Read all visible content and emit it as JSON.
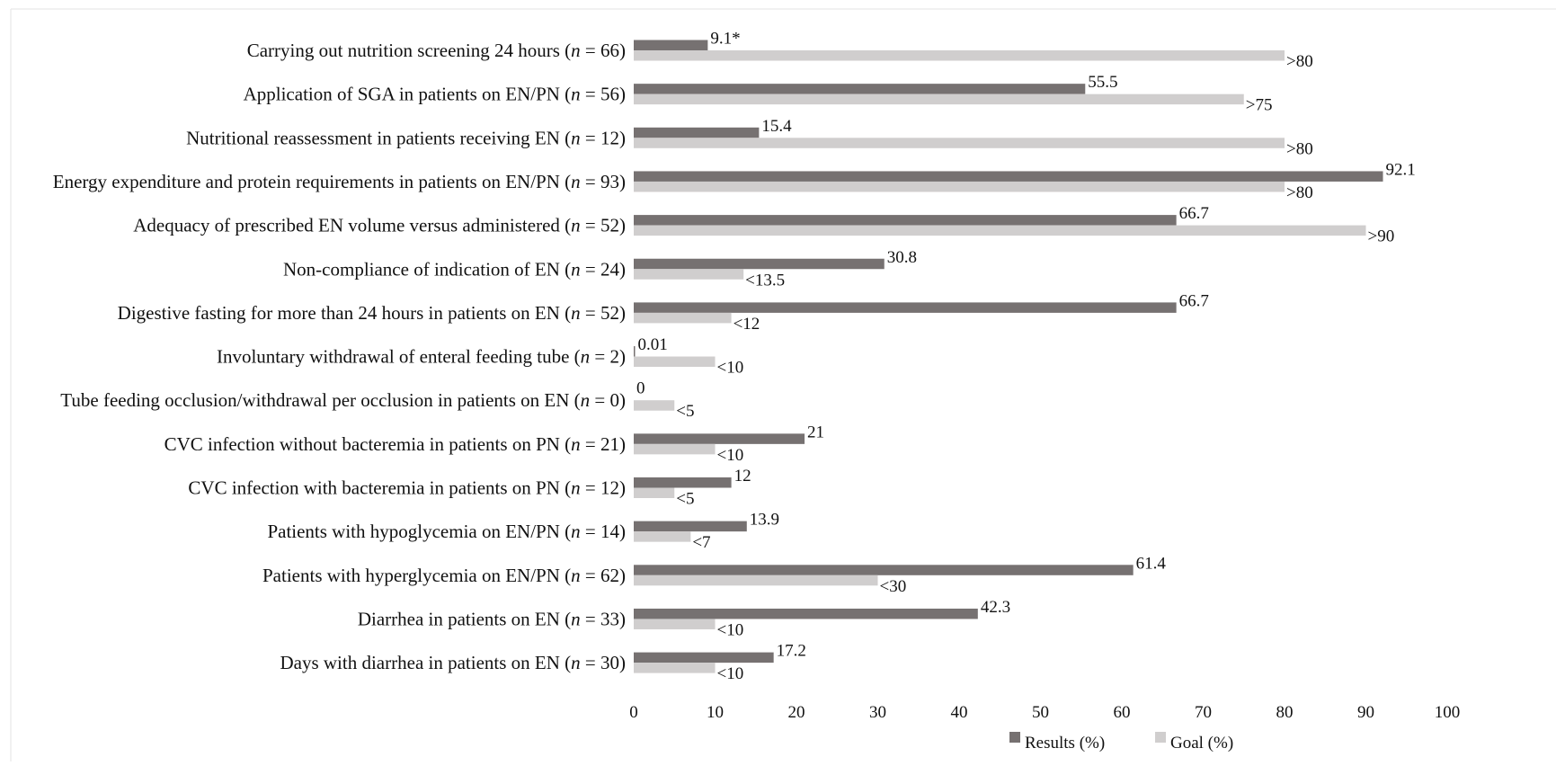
{
  "chart_data": {
    "type": "bar",
    "orientation": "horizontal",
    "categories": [
      "Carrying out nutrition screening 24 hours (n = 66)",
      "Application of SGA in patients on EN/PN (n = 56)",
      "Nutritional reassessment in patients receiving EN (n = 12)",
      "Energy expenditure and protein requirements in patients on EN/PN (n = 93)",
      "Adequacy of prescribed EN volume versus administered (n = 52)",
      "Non-compliance of indication of EN (n = 24)",
      "Digestive fasting for more than 24 hours in patients on EN (n = 52)",
      "Involuntary withdrawal of enteral feeding tube (n = 2)",
      "Tube feeding occlusion/withdrawal per occlusion in patients on EN (n = 0)",
      "CVC infection without bacteremia in patients on PN (n = 21)",
      "CVC infection with bacteremia in patients on PN (n = 12)",
      "Patients with hypoglycemia on EN/PN (n = 14)",
      "Patients with hyperglycemia on EN/PN (n = 62)",
      "Diarrhea in patients on EN (n = 33)",
      "Days with diarrhea in patients on EN (n = 30)"
    ],
    "category_parts": [
      [
        "Carrying out nutrition screening 24 hours (",
        "n",
        " = 66)"
      ],
      [
        "Application of SGA in patients on EN/PN (",
        "n",
        " = 56)"
      ],
      [
        "Nutritional reassessment in patients receiving EN (",
        "n",
        " = 12)"
      ],
      [
        "Energy expenditure and protein requirements in patients on EN/PN (",
        "n",
        " = 93)"
      ],
      [
        "Adequacy of prescribed EN volume versus administered (",
        "n",
        " = 52)"
      ],
      [
        "Non-compliance of indication of EN (",
        "n",
        " = 24)"
      ],
      [
        "Digestive fasting for more than 24 hours in patients on EN (",
        "n",
        " = 52)"
      ],
      [
        "Involuntary withdrawal of enteral feeding tube (",
        "n",
        " = 2)"
      ],
      [
        "Tube feeding occlusion/withdrawal per occlusion in patients on EN (",
        "n",
        " = 0)"
      ],
      [
        "CVC infection without bacteremia in patients on PN (",
        "n",
        " = 21)"
      ],
      [
        "CVC infection with bacteremia in patients on PN (",
        "n",
        " = 12)"
      ],
      [
        "Patients with hypoglycemia on EN/PN (",
        "n",
        " = 14)"
      ],
      [
        "Patients with hyperglycemia on EN/PN (",
        "n",
        " = 62)"
      ],
      [
        "Diarrhea in patients on EN (",
        "n",
        " = 33)"
      ],
      [
        "Days with diarrhea in patients on EN (",
        "n",
        " = 30)"
      ]
    ],
    "series": [
      {
        "name": "Results (%)",
        "color": "#767171",
        "values": [
          9.1,
          55.5,
          15.4,
          92.1,
          66.7,
          30.8,
          66.7,
          0.01,
          0,
          21,
          12,
          13.9,
          61.4,
          42.3,
          17.2
        ],
        "labels": [
          "9.1*",
          "55.5",
          "15.4",
          "92.1",
          "66.7",
          "30.8",
          "66.7",
          "0.01",
          "0",
          "21",
          "12",
          "13.9",
          "61.4",
          "42.3",
          "17.2"
        ]
      },
      {
        "name": "Goal (%)",
        "color": "#d0cece",
        "values": [
          80,
          75,
          80,
          80,
          90,
          13.5,
          12,
          10,
          5,
          10,
          5,
          7,
          30,
          10,
          10
        ],
        "labels": [
          ">80",
          ">75",
          ">80",
          ">80",
          ">90",
          "<13.5",
          "<12",
          "<10",
          "<5",
          "<10",
          "<5",
          "<7",
          "<30",
          "<10",
          "<10"
        ]
      }
    ],
    "xlim": [
      0,
      100
    ],
    "xticks": [
      0,
      10,
      20,
      30,
      40,
      50,
      60,
      70,
      80,
      90,
      100
    ],
    "grid": false,
    "legend_position": "bottom"
  }
}
